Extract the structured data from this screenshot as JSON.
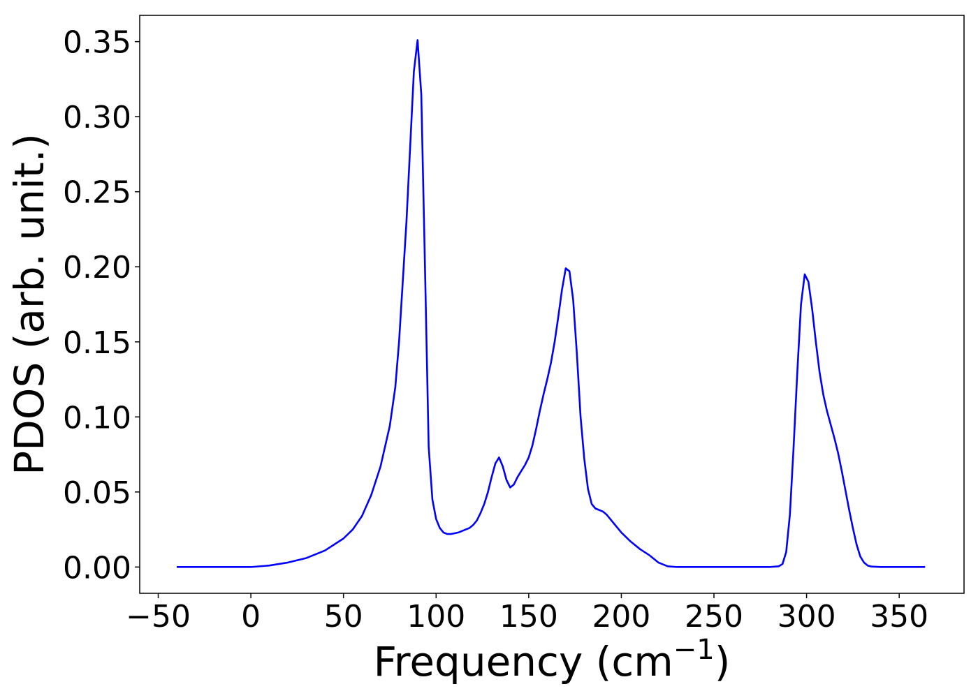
{
  "chart_data": {
    "type": "line",
    "title": "",
    "xlabel": "Frequency (cm",
    "xlabel_sup": "−1",
    "xlabel_close": ")",
    "ylabel": "PDOS (arb. unit.)",
    "xlim": [
      -60,
      385
    ],
    "ylim": [
      -0.0175,
      0.3675
    ],
    "grid": false,
    "legend": "none",
    "xticks": [
      -50,
      0,
      50,
      100,
      150,
      200,
      250,
      300,
      350
    ],
    "xtick_labels": [
      "−50",
      "0",
      "50",
      "100",
      "150",
      "200",
      "250",
      "300",
      "350"
    ],
    "yticks": [
      0.0,
      0.05,
      0.1,
      0.15,
      0.2,
      0.25,
      0.3,
      0.35
    ],
    "ytick_labels": [
      "0.00",
      "0.05",
      "0.10",
      "0.15",
      "0.20",
      "0.25",
      "0.30",
      "0.35"
    ],
    "series": [
      {
        "color": "#0000ff",
        "x": [
          -40,
          -20,
          0,
          10,
          20,
          30,
          40,
          50,
          55,
          60,
          65,
          70,
          75,
          78,
          80,
          82,
          84,
          86,
          88,
          90,
          92,
          94,
          96,
          98,
          100,
          102,
          104,
          106,
          108,
          110,
          112,
          115,
          118,
          120,
          122,
          124,
          126,
          128,
          130,
          132,
          134,
          136,
          138,
          140,
          142,
          144,
          146,
          148,
          150,
          152,
          154,
          156,
          158,
          160,
          162,
          164,
          166,
          168,
          170,
          172,
          174,
          176,
          178,
          180,
          182,
          184,
          186,
          188,
          190,
          192,
          194,
          196,
          198,
          200,
          205,
          210,
          215,
          220,
          222,
          225,
          230,
          240,
          250,
          260,
          270,
          280,
          285,
          287,
          289,
          291,
          293,
          295,
          297,
          299,
          301,
          303,
          305,
          307,
          309,
          311,
          313,
          315,
          317,
          319,
          321,
          323,
          325,
          327,
          329,
          331,
          333,
          335,
          340,
          350,
          364
        ],
        "y": [
          0.0,
          0.0,
          0.0,
          0.001,
          0.003,
          0.006,
          0.011,
          0.019,
          0.025,
          0.034,
          0.048,
          0.067,
          0.094,
          0.12,
          0.15,
          0.19,
          0.23,
          0.28,
          0.33,
          0.351,
          0.315,
          0.2,
          0.08,
          0.045,
          0.032,
          0.026,
          0.023,
          0.022,
          0.022,
          0.0225,
          0.023,
          0.0245,
          0.026,
          0.028,
          0.031,
          0.036,
          0.042,
          0.05,
          0.06,
          0.069,
          0.073,
          0.067,
          0.058,
          0.053,
          0.055,
          0.06,
          0.064,
          0.068,
          0.073,
          0.081,
          0.092,
          0.104,
          0.115,
          0.125,
          0.136,
          0.15,
          0.167,
          0.185,
          0.199,
          0.197,
          0.178,
          0.142,
          0.1,
          0.072,
          0.052,
          0.042,
          0.039,
          0.038,
          0.037,
          0.035,
          0.032,
          0.029,
          0.026,
          0.023,
          0.017,
          0.012,
          0.008,
          0.003,
          0.002,
          0.0005,
          0.0,
          0.0,
          0.0,
          0.0,
          0.0,
          0.0,
          0.0005,
          0.002,
          0.01,
          0.035,
          0.08,
          0.13,
          0.175,
          0.195,
          0.19,
          0.172,
          0.15,
          0.13,
          0.115,
          0.104,
          0.095,
          0.086,
          0.076,
          0.064,
          0.051,
          0.038,
          0.026,
          0.015,
          0.007,
          0.003,
          0.001,
          0.0003,
          0.0,
          0.0,
          0.0
        ]
      }
    ]
  }
}
